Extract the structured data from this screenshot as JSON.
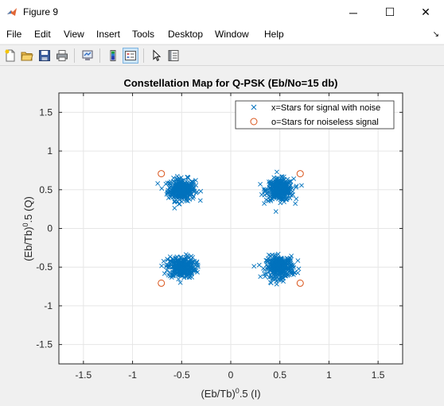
{
  "window": {
    "title": "Figure 9",
    "minimize_glyph": "─",
    "maximize_glyph": "☐",
    "close_glyph": "✕"
  },
  "menu": {
    "items": [
      "File",
      "Edit",
      "View",
      "Insert",
      "Tools",
      "Desktop",
      "Window",
      "Help"
    ],
    "dock_glyph": "↘"
  },
  "toolbar": {
    "buttons": [
      "new-figure-icon",
      "open-file-icon",
      "save-icon",
      "print-icon",
      "link-plot-icon",
      "colorbar-icon",
      "legend-icon",
      "edit-plot-icon",
      "property-inspector-icon"
    ],
    "pressed": "legend-icon"
  },
  "chart_data": {
    "type": "scatter",
    "title": "Constellation Map for Q-PSK (Eb/No=15 db)",
    "xlabel": "(Eb/Tb)^0.5 (I)",
    "ylabel": "(Eb/Tb)^0.5 (Q)",
    "xlim": [
      -1.75,
      1.75
    ],
    "ylim": [
      -1.75,
      1.75
    ],
    "xticks": [
      -1.5,
      -1,
      -0.5,
      0,
      0.5,
      1,
      1.5
    ],
    "yticks": [
      -1.5,
      -1,
      -0.5,
      0,
      0.5,
      1,
      1.5
    ],
    "xtick_labels": [
      "-1.5",
      "-1",
      "-0.5",
      "0",
      "0.5",
      "1",
      "1.5"
    ],
    "ytick_labels": [
      "-1.5",
      "-1",
      "-0.5",
      "0",
      "0.5",
      "1",
      "1.5"
    ],
    "grid": true,
    "legend_placement": "top-right",
    "series": [
      {
        "name": "x=Stars for signal with noise",
        "marker": "x",
        "color": "#0072bd",
        "cluster_centers": [
          [
            -0.5,
            0.5
          ],
          [
            0.5,
            0.5
          ],
          [
            -0.5,
            -0.5
          ],
          [
            0.5,
            -0.5
          ]
        ],
        "approx_spread": 0.07,
        "points_per_cluster": 300
      },
      {
        "name": "o=Stars for noiseless signal",
        "marker": "o",
        "color": "#d95319",
        "x": [
          -0.707,
          0.707,
          -0.707,
          0.707
        ],
        "y": [
          0.707,
          0.707,
          -0.707,
          -0.707
        ]
      }
    ]
  }
}
